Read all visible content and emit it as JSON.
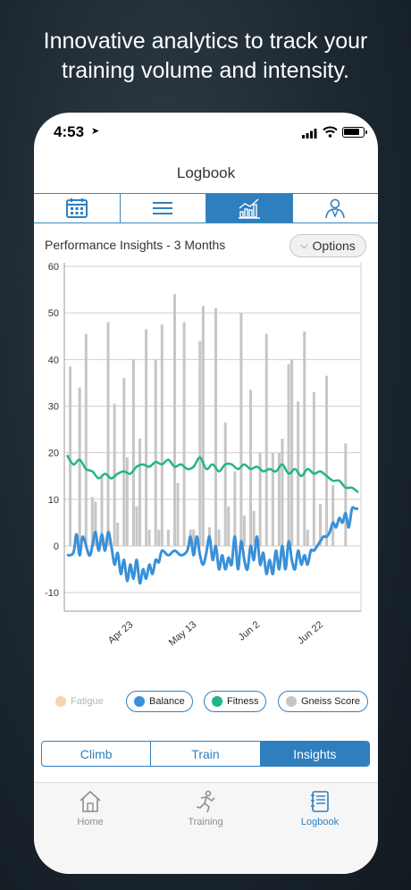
{
  "headline": {
    "line1": "Innovative analytics to track your",
    "line2": "training volume and intensity."
  },
  "status": {
    "time": "4:53",
    "location_arrow": "➤"
  },
  "nav": {
    "title": "Logbook"
  },
  "view_tabs": [
    {
      "icon": "calendar-icon",
      "active": false
    },
    {
      "icon": "list-icon",
      "active": false
    },
    {
      "icon": "chart-icon",
      "active": true
    },
    {
      "icon": "profile-icon",
      "active": false
    }
  ],
  "chart_header": {
    "title": "Performance Insights - 3 Months",
    "options_label": "Options"
  },
  "colors": {
    "accent": "#2f7fbf",
    "fitness": "#1fb58a",
    "balance": "#3a90d8",
    "gneiss": "#c6c6c6",
    "fatigue": "#f3d4b0"
  },
  "chart_data": {
    "type": "bar",
    "title": "",
    "xlabel": "",
    "ylabel": "",
    "ylim": [
      -14,
      60
    ],
    "yticks": [
      -10,
      0,
      10,
      20,
      30,
      40,
      50,
      60
    ],
    "x_range": [
      0,
      92
    ],
    "xticks": [
      {
        "label": "Apr 23",
        "x": 21
      },
      {
        "label": "May 13",
        "x": 41
      },
      {
        "label": "Jun 2",
        "x": 61
      },
      {
        "label": "Jun 22",
        "x": 81
      }
    ],
    "grid": true,
    "legend_position": "bottom",
    "series": [
      {
        "name": "Gneiss Score",
        "kind": "bar",
        "points": [
          [
            1,
            38.5
          ],
          [
            4,
            34
          ],
          [
            6,
            45.5
          ],
          [
            8,
            10.5
          ],
          [
            9,
            9.5
          ],
          [
            11,
            15
          ],
          [
            13,
            48
          ],
          [
            15,
            30.5
          ],
          [
            16,
            5
          ],
          [
            18,
            36
          ],
          [
            19,
            19
          ],
          [
            21,
            40
          ],
          [
            22,
            8.5
          ],
          [
            23,
            23
          ],
          [
            25,
            46.5
          ],
          [
            26,
            3.5
          ],
          [
            28,
            40
          ],
          [
            29,
            3.5
          ],
          [
            30,
            47.5
          ],
          [
            32,
            3.5
          ],
          [
            34,
            54
          ],
          [
            35,
            13.5
          ],
          [
            37,
            48
          ],
          [
            39,
            3.5
          ],
          [
            40,
            3.5
          ],
          [
            42,
            44
          ],
          [
            43,
            51.5
          ],
          [
            45,
            4
          ],
          [
            47,
            51
          ],
          [
            48,
            3.5
          ],
          [
            50,
            26.5
          ],
          [
            51,
            8.5
          ],
          [
            53,
            16
          ],
          [
            55,
            50
          ],
          [
            56,
            6.5
          ],
          [
            58,
            33.5
          ],
          [
            59,
            7.5
          ],
          [
            61,
            20
          ],
          [
            63,
            45.5
          ],
          [
            65,
            20
          ],
          [
            67,
            20
          ],
          [
            68,
            23
          ],
          [
            70,
            39
          ],
          [
            71,
            40
          ],
          [
            73,
            31
          ],
          [
            75,
            46
          ],
          [
            76,
            3.5
          ],
          [
            78,
            33
          ],
          [
            80,
            9
          ],
          [
            82,
            36.5
          ],
          [
            84,
            13
          ],
          [
            88,
            22
          ]
        ]
      },
      {
        "name": "Fitness",
        "kind": "line",
        "points": [
          [
            0,
            19.5
          ],
          [
            2,
            17.5
          ],
          [
            4,
            18.5
          ],
          [
            6,
            16.5
          ],
          [
            8,
            16
          ],
          [
            10,
            14.5
          ],
          [
            12,
            15.5
          ],
          [
            14,
            14.5
          ],
          [
            16,
            15.5
          ],
          [
            18,
            16
          ],
          [
            20,
            15.5
          ],
          [
            22,
            17
          ],
          [
            24,
            17.5
          ],
          [
            26,
            17
          ],
          [
            28,
            18
          ],
          [
            30,
            17.5
          ],
          [
            32,
            18.5
          ],
          [
            34,
            17
          ],
          [
            36,
            17.5
          ],
          [
            38,
            16.5
          ],
          [
            40,
            17
          ],
          [
            42,
            19
          ],
          [
            44,
            16.5
          ],
          [
            46,
            17.5
          ],
          [
            48,
            16
          ],
          [
            50,
            17.5
          ],
          [
            52,
            17.5
          ],
          [
            54,
            16.5
          ],
          [
            56,
            17.5
          ],
          [
            58,
            16.5
          ],
          [
            60,
            17
          ],
          [
            62,
            16
          ],
          [
            64,
            16.5
          ],
          [
            66,
            16
          ],
          [
            68,
            17.5
          ],
          [
            70,
            15.5
          ],
          [
            72,
            16.5
          ],
          [
            74,
            15
          ],
          [
            76,
            16.5
          ],
          [
            78,
            15.5
          ],
          [
            80,
            16
          ],
          [
            82,
            15
          ],
          [
            84,
            14
          ],
          [
            86,
            14
          ],
          [
            88,
            12.5
          ],
          [
            90,
            12.5
          ],
          [
            92,
            11.5
          ]
        ]
      },
      {
        "name": "Balance",
        "kind": "line",
        "points": [
          [
            0,
            -2
          ],
          [
            2,
            -1.5
          ],
          [
            3,
            2.5
          ],
          [
            4,
            -2
          ],
          [
            5,
            2
          ],
          [
            7,
            -2
          ],
          [
            8,
            0
          ],
          [
            9,
            3
          ],
          [
            10,
            -1
          ],
          [
            11,
            2.5
          ],
          [
            12,
            -1
          ],
          [
            13,
            3
          ],
          [
            14,
            0
          ],
          [
            15,
            -4
          ],
          [
            16,
            -1.5
          ],
          [
            17,
            -6
          ],
          [
            18,
            -3
          ],
          [
            19,
            -7.5
          ],
          [
            20,
            -4
          ],
          [
            21,
            -7
          ],
          [
            22,
            -3
          ],
          [
            23,
            -8
          ],
          [
            24,
            -5
          ],
          [
            25,
            -7
          ],
          [
            26,
            -4
          ],
          [
            27,
            -6
          ],
          [
            28,
            -3
          ],
          [
            29,
            -3.5
          ],
          [
            30,
            -1
          ],
          [
            32,
            -2
          ],
          [
            34,
            -1
          ],
          [
            36,
            -2
          ],
          [
            38,
            -1
          ],
          [
            39,
            2
          ],
          [
            40,
            -2
          ],
          [
            41,
            2
          ],
          [
            42,
            -2
          ],
          [
            43,
            -4
          ],
          [
            44,
            -1.5
          ],
          [
            45,
            2
          ],
          [
            46,
            -3
          ],
          [
            47,
            0
          ],
          [
            48,
            -5
          ],
          [
            49,
            -2
          ],
          [
            50,
            -5
          ],
          [
            51,
            -2.5
          ],
          [
            52,
            -4
          ],
          [
            53,
            2
          ],
          [
            54,
            -5
          ],
          [
            55,
            1
          ],
          [
            56,
            -3
          ],
          [
            57,
            -5
          ],
          [
            58,
            0
          ],
          [
            59,
            -3
          ],
          [
            60,
            2
          ],
          [
            61,
            -4
          ],
          [
            62,
            -1.5
          ],
          [
            63,
            -6
          ],
          [
            64,
            -3
          ],
          [
            65,
            -6
          ],
          [
            66,
            -1
          ],
          [
            67,
            -5
          ],
          [
            68,
            0
          ],
          [
            69,
            -5
          ],
          [
            70,
            1
          ],
          [
            71,
            -3
          ],
          [
            72,
            -5
          ],
          [
            73,
            -1
          ],
          [
            74,
            -4
          ],
          [
            75,
            -2
          ],
          [
            76,
            -4
          ],
          [
            77,
            -1
          ],
          [
            78,
            -1
          ],
          [
            79,
            0
          ],
          [
            80,
            1
          ],
          [
            81,
            2
          ],
          [
            82,
            2
          ],
          [
            83,
            3
          ],
          [
            84,
            5
          ],
          [
            85,
            4
          ],
          [
            86,
            6
          ],
          [
            87,
            5
          ],
          [
            88,
            7
          ],
          [
            89,
            4
          ],
          [
            90,
            8
          ],
          [
            91,
            8
          ],
          [
            92,
            8
          ]
        ]
      }
    ]
  },
  "legend": [
    {
      "label": "Fatigue",
      "color": "#f3d4b0",
      "enabled": false
    },
    {
      "label": "Balance",
      "color": "#3a90d8",
      "enabled": true
    },
    {
      "label": "Fitness",
      "color": "#1fb58a",
      "enabled": true
    },
    {
      "label": "Gneiss Score",
      "color": "#c6c6c6",
      "enabled": true
    }
  ],
  "mode_tabs": [
    {
      "label": "Climb",
      "active": false
    },
    {
      "label": "Train",
      "active": false
    },
    {
      "label": "Insights",
      "active": true
    }
  ],
  "tabbar": [
    {
      "label": "Home",
      "icon": "home-icon",
      "active": false
    },
    {
      "label": "Training",
      "icon": "runner-icon",
      "active": false
    },
    {
      "label": "Logbook",
      "icon": "notebook-icon",
      "active": true
    }
  ]
}
